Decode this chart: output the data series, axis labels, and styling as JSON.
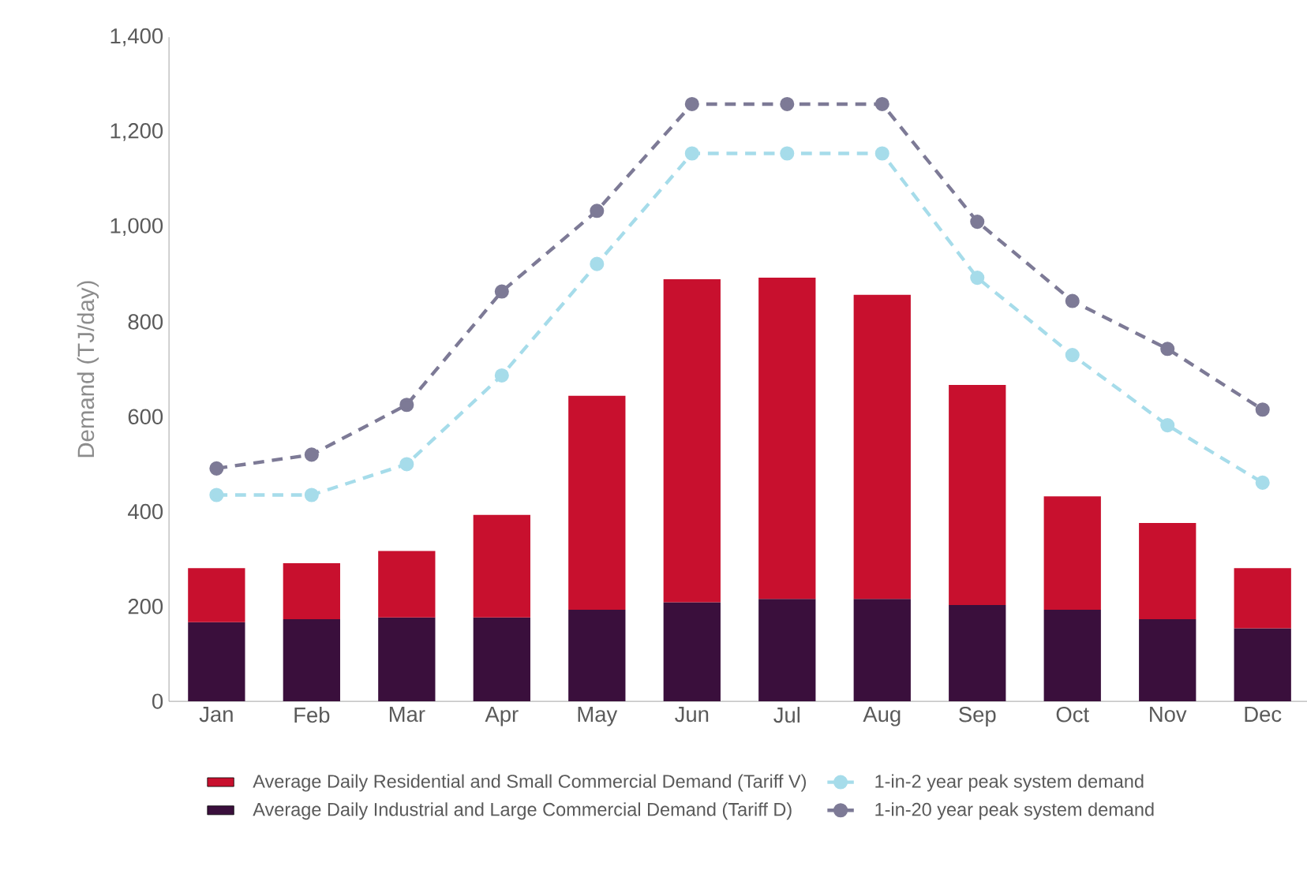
{
  "chart_data": {
    "type": "bar",
    "stacked": true,
    "ylabel": "Demand (TJ/day)",
    "categories": [
      "Jan",
      "Feb",
      "Mar",
      "Apr",
      "May",
      "Jun",
      "Jul",
      "Aug",
      "Sep",
      "Oct",
      "Nov",
      "Dec"
    ],
    "series": [
      {
        "name": "Average Daily Industrial and Large Commercial Demand (Tariff D)",
        "color": "#3a0f3c",
        "values": [
          167,
          173,
          177,
          177,
          193,
          209,
          216,
          216,
          203,
          193,
          173,
          154
        ]
      },
      {
        "name": "Average Daily Residential and Small Commercial Demand (Tariff V)",
        "color": "#c8102e",
        "values": [
          114,
          118,
          140,
          216,
          451,
          681,
          677,
          641,
          464,
          239,
          203,
          127
        ]
      },
      {
        "name": "1-in-2 year peak system demand",
        "type": "line",
        "color": "#a6dcea",
        "marker": "circle",
        "line_style": "dashed",
        "values": [
          435,
          435,
          500,
          687,
          922,
          1155,
          1155,
          1155,
          893,
          730,
          582,
          461
        ]
      },
      {
        "name": "1-in-20 year peak system demand",
        "type": "line",
        "color": "#7d7a96",
        "marker": "circle",
        "line_style": "dashed",
        "values": [
          491,
          520,
          625,
          864,
          1034,
          1259,
          1259,
          1259,
          1011,
          844,
          743,
          615
        ]
      }
    ],
    "ylim": [
      0,
      1400
    ],
    "yticks": [
      0,
      200,
      400,
      600,
      800,
      {
        "value": 1000,
        "label": "1,000"
      },
      {
        "value": 1200,
        "label": "1,200"
      },
      {
        "value": 1400,
        "label": "1,400"
      }
    ],
    "grid": false,
    "legend": "bottom"
  }
}
